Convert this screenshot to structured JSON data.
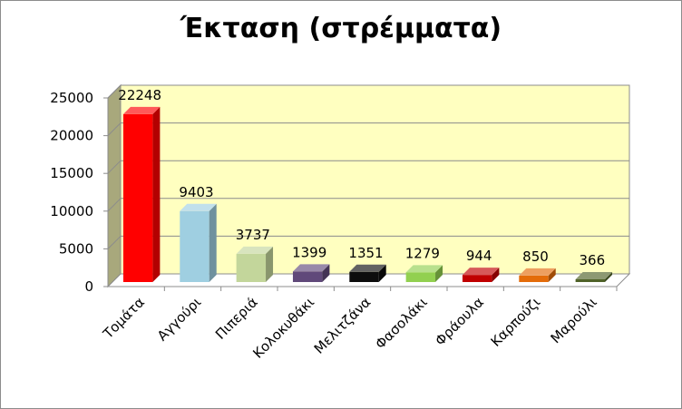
{
  "chart_data": {
    "type": "bar",
    "title": "Έκταση (στρέμματα)",
    "categories": [
      "Τομάτα",
      "Αγγούρι",
      "Πιπεριά",
      "Κολοκυθάκι",
      "Μελιτζάνα",
      "Φασολάκι",
      "Φράουλα",
      "Καρπούζι",
      "Μαρούλι"
    ],
    "values": [
      22248,
      9403,
      3737,
      1399,
      1351,
      1279,
      944,
      850,
      366
    ],
    "bar_colors": [
      "#ff0000",
      "#9fcfe1",
      "#c3d69b",
      "#60497a",
      "#0d0d0d",
      "#92d050",
      "#c00000",
      "#e46c0a",
      "#4f6228"
    ],
    "ylim": [
      0,
      25000
    ],
    "yticks": [
      0,
      5000,
      10000,
      15000,
      20000,
      25000
    ],
    "xlabel": "",
    "ylabel": "",
    "grid": true,
    "three_d": true,
    "plot_background": "#ffffc0",
    "floor_color": "#ffffff",
    "side_wall_color": "#a8a87c"
  }
}
